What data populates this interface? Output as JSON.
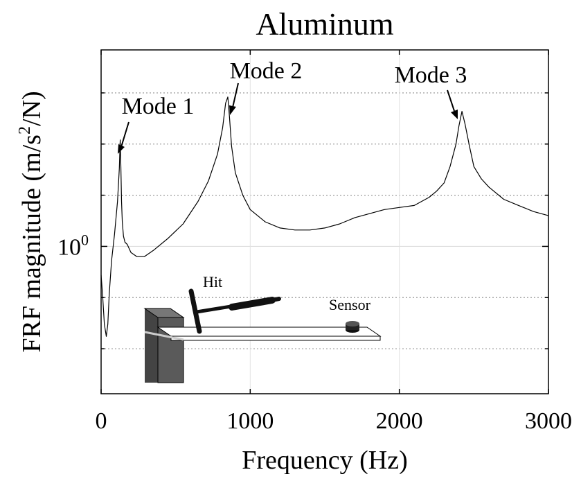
{
  "chart_data": {
    "type": "line",
    "title": "Aluminum",
    "xlabel": "Frequency (Hz)",
    "ylabel": "FRF magnitude (m/s²/N)",
    "ylabel_main": "FRF magnitude (m/s",
    "ylabel_sup": "2",
    "ylabel_tail": "/N)",
    "yscale": "log",
    "xlim": [
      0,
      3000
    ],
    "ylim_log10": [
      -0.72,
      0.96
    ],
    "xticks": [
      0,
      1000,
      2000,
      3000
    ],
    "xtick_labels": [
      "0",
      "1000",
      "2000",
      "3000"
    ],
    "ytick_major_label_base": "10",
    "ytick_major_label_exp": "0",
    "ygrid_log10": [
      -0.5,
      -0.25,
      0,
      0.25,
      0.5,
      0.75
    ],
    "grid": true,
    "series": [
      {
        "name": "FRF",
        "x": [
          0,
          10,
          22,
          35,
          45,
          55,
          70,
          90,
          110,
          122,
          128,
          133,
          137,
          142,
          150,
          160,
          175,
          200,
          240,
          290,
          350,
          450,
          550,
          650,
          720,
          780,
          815,
          835,
          850,
          860,
          875,
          900,
          950,
          1000,
          1100,
          1200,
          1300,
          1400,
          1500,
          1600,
          1700,
          1800,
          1900,
          2000,
          2100,
          2200,
          2250,
          2300,
          2340,
          2380,
          2400,
          2420,
          2440,
          2470,
          2500,
          2550,
          2600,
          2700,
          2800,
          2900,
          3000
        ],
        "y_log10": [
          -0.14,
          -0.24,
          -0.38,
          -0.44,
          -0.38,
          -0.23,
          -0.07,
          0.06,
          0.22,
          0.38,
          0.52,
          0.38,
          0.22,
          0.12,
          0.05,
          0.02,
          0.01,
          -0.03,
          -0.05,
          -0.05,
          -0.02,
          0.04,
          0.11,
          0.22,
          0.32,
          0.45,
          0.58,
          0.7,
          0.73,
          0.64,
          0.49,
          0.36,
          0.25,
          0.18,
          0.12,
          0.09,
          0.08,
          0.08,
          0.09,
          0.11,
          0.14,
          0.16,
          0.18,
          0.19,
          0.2,
          0.24,
          0.27,
          0.31,
          0.39,
          0.5,
          0.59,
          0.66,
          0.6,
          0.49,
          0.39,
          0.33,
          0.29,
          0.23,
          0.2,
          0.17,
          0.15
        ]
      }
    ],
    "annotations": [
      {
        "text": "Mode 1",
        "x": 128,
        "y_log10": 0.52
      },
      {
        "text": "Mode 2",
        "x": 850,
        "y_log10": 0.73
      },
      {
        "text": "Mode 3",
        "x": 2440,
        "y_log10": 0.66
      }
    ]
  },
  "inset": {
    "hit_label": "Hit",
    "sensor_label": "Sensor"
  }
}
